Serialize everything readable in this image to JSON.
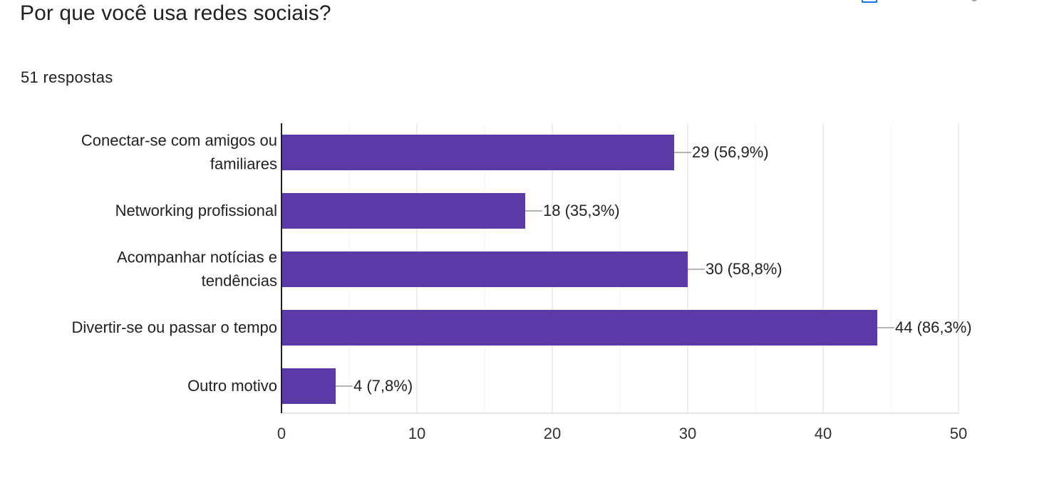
{
  "question": {
    "title": "Por que você usa redes sociais?",
    "response_count": "51 respostas"
  },
  "header_icons": [
    "copy-chart-icon",
    "more-options-icon"
  ],
  "colors": {
    "bar": "#5b3aa6",
    "axis": "#202124",
    "grid": "#e8e8e8",
    "text": "#202124",
    "connector": "#888888",
    "accent_icon": "#1a73e8"
  },
  "chart_data": {
    "type": "bar",
    "orientation": "horizontal",
    "categories": [
      [
        "Conectar-se com amigos ou",
        "familiares"
      ],
      [
        "Networking profissional"
      ],
      [
        "Acompanhar notícias e",
        "tendências"
      ],
      [
        "Divertir-se ou passar o tempo"
      ],
      [
        "Outro motivo"
      ]
    ],
    "values": [
      29,
      18,
      30,
      44,
      4
    ],
    "data_labels": [
      "29 (56,9%)",
      "18 (35,3%)",
      "30 (58,8%)",
      "44 (86,3%)",
      "4 (7,8%)"
    ],
    "xlim": [
      0,
      50
    ],
    "xticks": [
      0,
      10,
      20,
      30,
      40,
      50
    ],
    "xtick_labels": [
      "0",
      "10",
      "20",
      "30",
      "40",
      "50"
    ],
    "grid": true,
    "minor_grid": true,
    "legend": "none",
    "title": "",
    "xlabel": "",
    "ylabel": ""
  }
}
